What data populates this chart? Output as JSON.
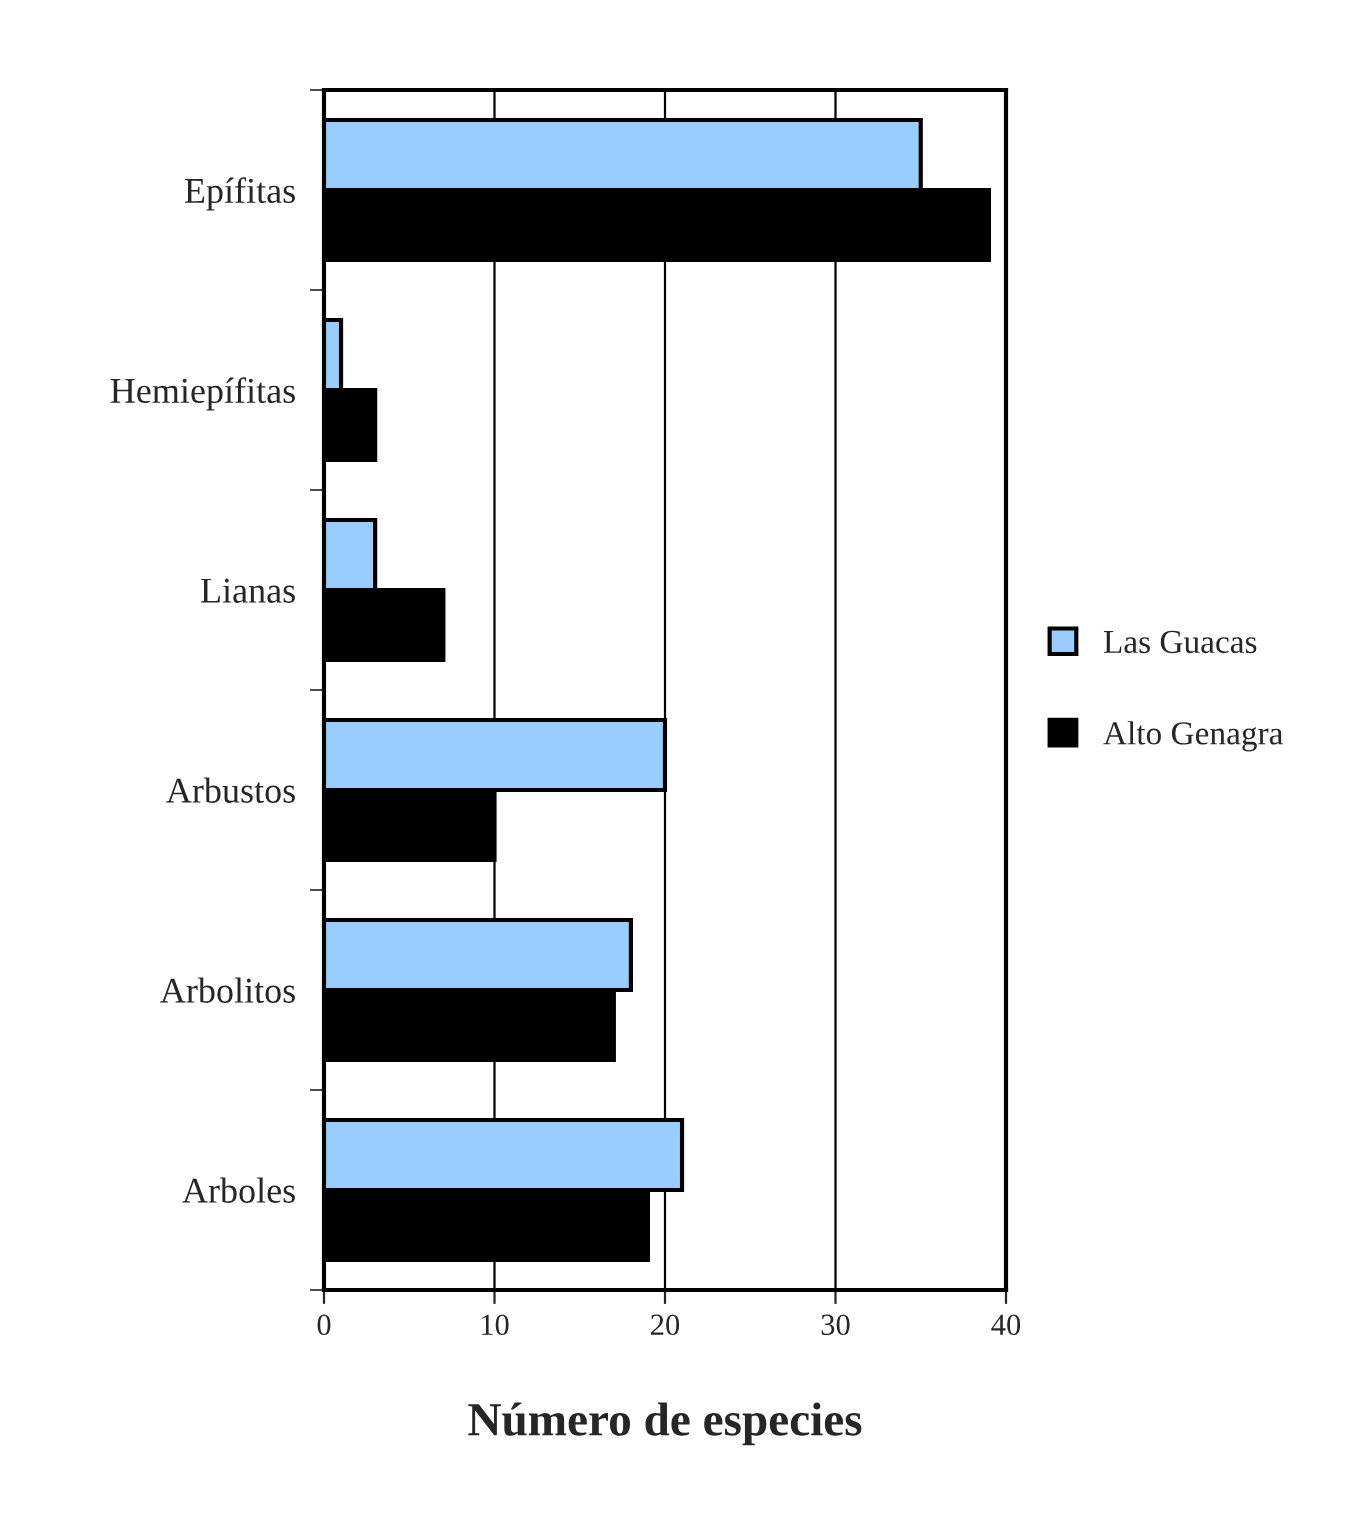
{
  "chart_data": {
    "type": "bar",
    "orientation": "horizontal",
    "xlabel": "Número de especies",
    "categories": [
      "Epífitas",
      "Hemiepífitas",
      "Lianas",
      "Arbustos",
      "Arbolitos",
      "Arboles"
    ],
    "series": [
      {
        "name": "Las Guacas",
        "color": "#99ccff",
        "values": [
          35,
          1,
          3,
          20,
          18,
          21
        ]
      },
      {
        "name": "Alto Genagra",
        "color": "#000000",
        "values": [
          39,
          3,
          7,
          10,
          17,
          19
        ]
      }
    ],
    "xlim": [
      0,
      40
    ],
    "xticks": [
      0,
      10,
      20,
      30,
      40
    ],
    "grid": "x",
    "legend": "right"
  }
}
